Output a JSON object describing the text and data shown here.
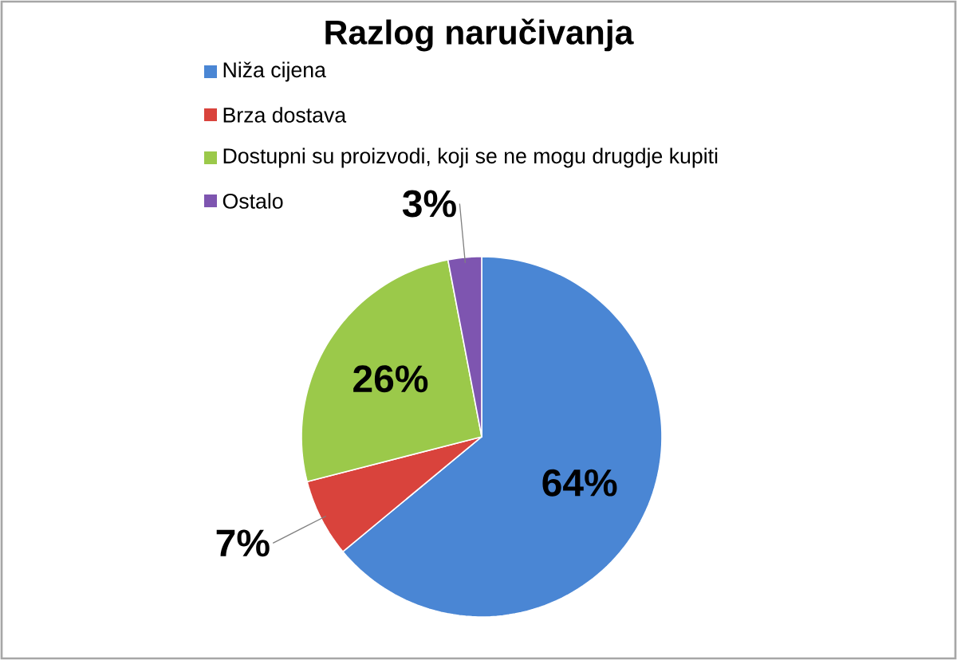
{
  "chart_data": {
    "type": "pie",
    "title": "Razlog naručivanja",
    "categories": [
      "Niža cijena",
      "Brza dostava",
      "Dostupni su proizvodi, koji se ne mogu drugdje kupiti",
      "Ostalo"
    ],
    "values": [
      64,
      7,
      26,
      3
    ],
    "colors": [
      "#4a86d4",
      "#d9433c",
      "#9bc94a",
      "#7e55b0"
    ],
    "value_labels": [
      "64%",
      "7%",
      "26%",
      "3%"
    ],
    "legend": "top left"
  }
}
